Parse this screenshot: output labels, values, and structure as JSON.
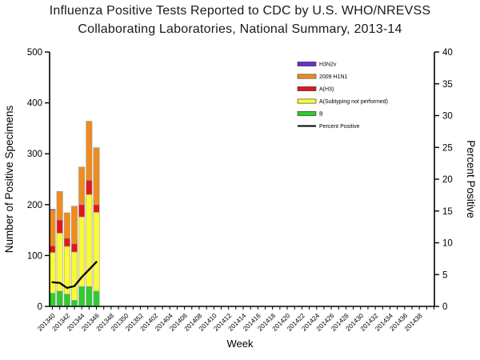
{
  "chart_data": {
    "type": "bar",
    "variant": "stacked-bar-with-percent-line",
    "title": "Influenza Positive Tests Reported to CDC by U.S. WHO/NREVSS Collaborating Laboratories, National Summary, 2013-14",
    "title_lines": [
      "Influenza Positive Tests Reported to CDC by U.S. WHO/NREVSS",
      "Collaborating Laboratories, National Summary, 2013-14"
    ],
    "xlabel": "Week",
    "ylabel_left": "Number of Positive Specimens",
    "ylabel_right": "Percent Positive",
    "axes": {
      "left": {
        "min": 0,
        "max": 500,
        "ticks": [
          0,
          100,
          200,
          300,
          400,
          500
        ]
      },
      "right": {
        "min": 0,
        "max": 40,
        "ticks": [
          0,
          5,
          10,
          15,
          20,
          25,
          30,
          35,
          40
        ]
      },
      "x": {
        "weeks_shown": 53,
        "first_week": "201340",
        "last_labeled_week": "201438",
        "labels": [
          "201340",
          "201342",
          "201344",
          "201346",
          "201348",
          "201350",
          "201352",
          "201402",
          "201404",
          "201406",
          "201408",
          "201410",
          "201412",
          "201414",
          "201416",
          "201418",
          "201420",
          "201422",
          "201424",
          "201426",
          "201428",
          "201430",
          "201432",
          "201434",
          "201436",
          "201438"
        ]
      }
    },
    "categories": [
      "201340",
      "201341",
      "201342",
      "201343",
      "201344",
      "201345",
      "201346"
    ],
    "series": [
      {
        "name": "B",
        "color": "#2ecc2e",
        "values": [
          26,
          30,
          24,
          12,
          39,
          39,
          30
        ]
      },
      {
        "name": "A(Subtyping not performed)",
        "color": "#fbfb33",
        "values": [
          80,
          114,
          94,
          95,
          137,
          181,
          155
        ]
      },
      {
        "name": "A(H3)",
        "color": "#e01818",
        "values": [
          13,
          26,
          16,
          16,
          24,
          28,
          15
        ]
      },
      {
        "name": "2009 H1N1",
        "color": "#f08c1e",
        "values": [
          70,
          56,
          50,
          74,
          74,
          116,
          112
        ]
      },
      {
        "name": "H3N2v",
        "color": "#6a2fd0",
        "values": [
          2,
          0,
          0,
          0,
          0,
          0,
          0
        ]
      }
    ],
    "bar_totals": [
      191,
      226,
      184,
      197,
      274,
      364,
      312
    ],
    "line_series": {
      "name": "Percent Positive",
      "color": "#000000",
      "axis": "right",
      "values": [
        3.8,
        3.7,
        2.9,
        3.2,
        4.6,
        5.8,
        7.0
      ]
    },
    "legend": {
      "position": "top-right-inside",
      "entries": [
        {
          "label": "H3N2v",
          "color": "#6a2fd0",
          "type": "bar"
        },
        {
          "label": "2009 H1N1",
          "color": "#f08c1e",
          "type": "bar"
        },
        {
          "label": "A(H3)",
          "color": "#e01818",
          "type": "bar"
        },
        {
          "label": "A(Subtyping not performed)",
          "color": "#fbfb33",
          "type": "bar"
        },
        {
          "label": "B",
          "color": "#2ecc2e",
          "type": "bar"
        },
        {
          "label": "Percent Positive",
          "color": "#000000",
          "type": "line"
        }
      ]
    }
  }
}
